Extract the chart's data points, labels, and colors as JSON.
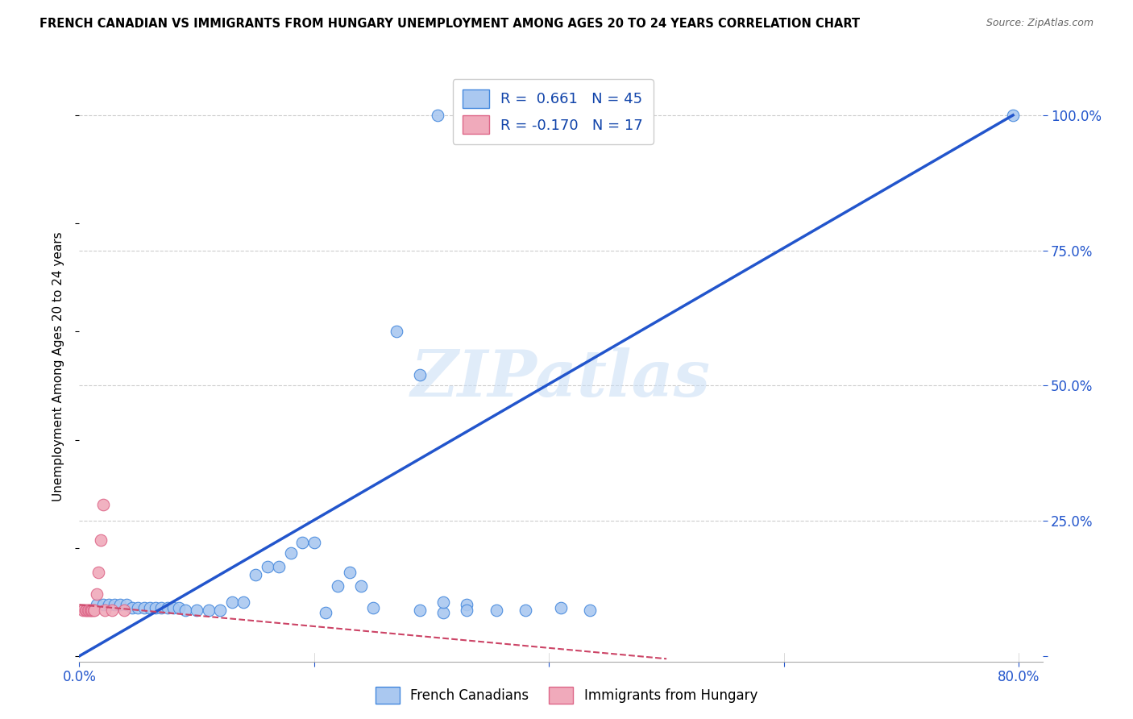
{
  "title": "FRENCH CANADIAN VS IMMIGRANTS FROM HUNGARY UNEMPLOYMENT AMONG AGES 20 TO 24 YEARS CORRELATION CHART",
  "source": "Source: ZipAtlas.com",
  "ylabel": "Unemployment Among Ages 20 to 24 years",
  "xlim": [
    0.0,
    0.82
  ],
  "ylim": [
    -0.01,
    1.08
  ],
  "x_ticks": [
    0.0,
    0.2,
    0.4,
    0.6,
    0.8
  ],
  "x_tick_labels": [
    "0.0%",
    "",
    "",
    "",
    "80.0%"
  ],
  "y_ticks_right": [
    0.0,
    0.25,
    0.5,
    0.75,
    1.0
  ],
  "y_tick_labels_right": [
    "",
    "25.0%",
    "50.0%",
    "75.0%",
    "100.0%"
  ],
  "blue_color": "#aac8f0",
  "blue_edge_color": "#4488dd",
  "blue_line_color": "#2255cc",
  "pink_color": "#f0aabb",
  "pink_edge_color": "#dd6688",
  "pink_line_color": "#cc4466",
  "blue_R": 0.661,
  "blue_N": 45,
  "pink_R": -0.17,
  "pink_N": 17,
  "watermark": "ZIPatlas",
  "blue_scatter_x": [
    0.305,
    0.795,
    0.015,
    0.02,
    0.025,
    0.03,
    0.035,
    0.04,
    0.045,
    0.05,
    0.055,
    0.06,
    0.065,
    0.07,
    0.075,
    0.08,
    0.085,
    0.09,
    0.1,
    0.11,
    0.12,
    0.13,
    0.14,
    0.15,
    0.16,
    0.17,
    0.18,
    0.19,
    0.2,
    0.21,
    0.22,
    0.23,
    0.24,
    0.25,
    0.27,
    0.29,
    0.31,
    0.33,
    0.355,
    0.38,
    0.41,
    0.435,
    0.29,
    0.31,
    0.33
  ],
  "blue_scatter_y": [
    1.0,
    1.0,
    0.095,
    0.095,
    0.095,
    0.095,
    0.095,
    0.095,
    0.09,
    0.09,
    0.09,
    0.09,
    0.09,
    0.09,
    0.09,
    0.09,
    0.09,
    0.085,
    0.085,
    0.085,
    0.085,
    0.1,
    0.1,
    0.15,
    0.165,
    0.165,
    0.19,
    0.21,
    0.21,
    0.08,
    0.13,
    0.155,
    0.13,
    0.09,
    0.6,
    0.085,
    0.08,
    0.095,
    0.085,
    0.085,
    0.09,
    0.085,
    0.52,
    0.1,
    0.085
  ],
  "pink_scatter_x": [
    0.003,
    0.005,
    0.006,
    0.007,
    0.008,
    0.009,
    0.01,
    0.011,
    0.012,
    0.013,
    0.015,
    0.016,
    0.018,
    0.02,
    0.022,
    0.028,
    0.038
  ],
  "pink_scatter_y": [
    0.085,
    0.085,
    0.085,
    0.085,
    0.085,
    0.085,
    0.085,
    0.085,
    0.085,
    0.085,
    0.115,
    0.155,
    0.215,
    0.28,
    0.085,
    0.085,
    0.085
  ],
  "blue_line_x": [
    0.0,
    0.795
  ],
  "blue_line_y": [
    0.0,
    1.0
  ],
  "pink_line_x": [
    0.0,
    0.5
  ],
  "pink_line_y": [
    0.095,
    -0.005
  ],
  "background_color": "#ffffff",
  "grid_color": "#cccccc",
  "tick_color": "#2255cc",
  "label_color": "#2255cc"
}
